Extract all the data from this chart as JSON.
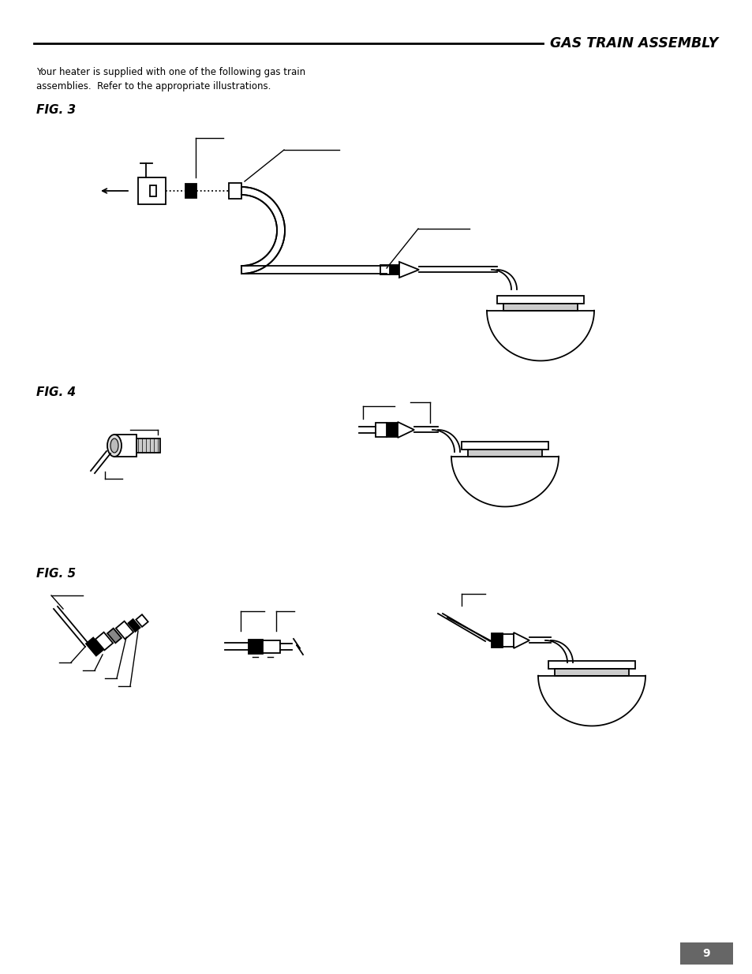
{
  "title": "GAS TRAIN ASSEMBLY",
  "body_text": "Your heater is supplied with one of the following gas train\nassemblies.  Refer to the appropriate illustrations.",
  "fig3_label": "FIG. 3",
  "fig4_label": "FIG. 4",
  "fig5_label": "FIG. 5",
  "page_number": "9",
  "bg_color": "#ffffff",
  "line_color": "#000000",
  "title_color": "#000000",
  "text_color": "#000000"
}
